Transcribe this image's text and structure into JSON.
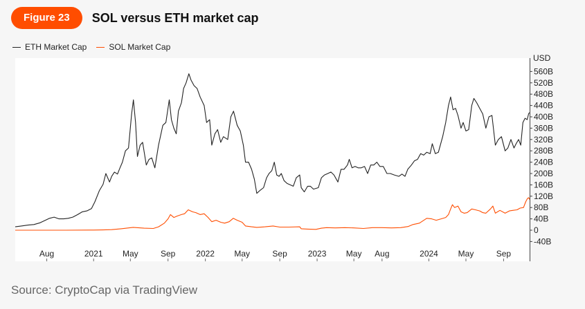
{
  "figure_label": "Figure 23",
  "title": "SOL versus ETH market cap",
  "source": "Source: CryptoCap via TradingView",
  "chart_data": {
    "type": "line",
    "y_unit": "USD",
    "ylim": [
      -40,
      590
    ],
    "y_ticks": [
      "560B",
      "520B",
      "480B",
      "440B",
      "400B",
      "360B",
      "320B",
      "280B",
      "240B",
      "200B",
      "160B",
      "120B",
      "80B",
      "40B",
      "0",
      "-40B"
    ],
    "y_tick_values": [
      560,
      520,
      480,
      440,
      400,
      360,
      320,
      280,
      240,
      200,
      160,
      120,
      80,
      40,
      0,
      -40
    ],
    "x_ticks": [
      {
        "label": "Aug",
        "date": "2020-08-01"
      },
      {
        "label": "2021",
        "date": "2021-01-01"
      },
      {
        "label": "May",
        "date": "2021-05-01"
      },
      {
        "label": "Sep",
        "date": "2021-09-01"
      },
      {
        "label": "2022",
        "date": "2022-01-01"
      },
      {
        "label": "May",
        "date": "2022-05-01"
      },
      {
        "label": "Sep",
        "date": "2022-09-01"
      },
      {
        "label": "2023",
        "date": "2023-01-01"
      },
      {
        "label": "May",
        "date": "2023-05-01"
      },
      {
        "label": "Aug",
        "date": "2023-08-01"
      },
      {
        "label": "2024",
        "date": "2024-01-01"
      },
      {
        "label": "May",
        "date": "2024-05-01"
      },
      {
        "label": "Sep",
        "date": "2024-09-01"
      }
    ],
    "x_range": [
      "2020-04-20",
      "2024-11-25"
    ],
    "grid": false,
    "legend_position": "top-left",
    "series": [
      {
        "name": "ETH Market Cap",
        "color": "#222222",
        "points": [
          [
            "2020-04-20",
            12
          ],
          [
            "2020-05-10",
            15
          ],
          [
            "2020-06-01",
            18
          ],
          [
            "2020-06-20",
            20
          ],
          [
            "2020-07-10",
            26
          ],
          [
            "2020-07-25",
            34
          ],
          [
            "2020-08-10",
            42
          ],
          [
            "2020-08-25",
            46
          ],
          [
            "2020-09-10",
            40
          ],
          [
            "2020-09-25",
            40
          ],
          [
            "2020-10-10",
            42
          ],
          [
            "2020-10-25",
            46
          ],
          [
            "2020-11-10",
            55
          ],
          [
            "2020-11-25",
            65
          ],
          [
            "2020-12-10",
            68
          ],
          [
            "2020-12-25",
            76
          ],
          [
            "2021-01-05",
            100
          ],
          [
            "2021-01-20",
            140
          ],
          [
            "2021-02-01",
            162
          ],
          [
            "2021-02-10",
            200
          ],
          [
            "2021-02-22",
            170
          ],
          [
            "2021-03-01",
            190
          ],
          [
            "2021-03-10",
            205
          ],
          [
            "2021-03-20",
            198
          ],
          [
            "2021-03-28",
            220
          ],
          [
            "2021-04-05",
            240
          ],
          [
            "2021-04-15",
            280
          ],
          [
            "2021-04-25",
            290
          ],
          [
            "2021-05-05",
            410
          ],
          [
            "2021-05-11",
            460
          ],
          [
            "2021-05-18",
            380
          ],
          [
            "2021-05-24",
            260
          ],
          [
            "2021-06-02",
            300
          ],
          [
            "2021-06-10",
            310
          ],
          [
            "2021-06-22",
            230
          ],
          [
            "2021-07-01",
            250
          ],
          [
            "2021-07-10",
            255
          ],
          [
            "2021-07-20",
            220
          ],
          [
            "2021-08-01",
            300
          ],
          [
            "2021-08-15",
            370
          ],
          [
            "2021-08-25",
            380
          ],
          [
            "2021-09-05",
            460
          ],
          [
            "2021-09-12",
            390
          ],
          [
            "2021-09-20",
            360
          ],
          [
            "2021-09-28",
            340
          ],
          [
            "2021-10-05",
            420
          ],
          [
            "2021-10-15",
            450
          ],
          [
            "2021-10-22",
            500
          ],
          [
            "2021-10-30",
            520
          ],
          [
            "2021-11-08",
            552
          ],
          [
            "2021-11-15",
            530
          ],
          [
            "2021-11-25",
            510
          ],
          [
            "2021-12-05",
            500
          ],
          [
            "2021-12-15",
            470
          ],
          [
            "2021-12-28",
            440
          ],
          [
            "2022-01-05",
            380
          ],
          [
            "2022-01-15",
            390
          ],
          [
            "2022-01-22",
            300
          ],
          [
            "2022-02-01",
            340
          ],
          [
            "2022-02-10",
            355
          ],
          [
            "2022-02-20",
            310
          ],
          [
            "2022-03-01",
            330
          ],
          [
            "2022-03-15",
            320
          ],
          [
            "2022-03-25",
            400
          ],
          [
            "2022-04-03",
            420
          ],
          [
            "2022-04-15",
            370
          ],
          [
            "2022-04-25",
            350
          ],
          [
            "2022-05-05",
            300
          ],
          [
            "2022-05-12",
            240
          ],
          [
            "2022-05-22",
            240
          ],
          [
            "2022-06-01",
            215
          ],
          [
            "2022-06-10",
            180
          ],
          [
            "2022-06-18",
            130
          ],
          [
            "2022-06-28",
            140
          ],
          [
            "2022-07-10",
            150
          ],
          [
            "2022-07-20",
            185
          ],
          [
            "2022-07-28",
            200
          ],
          [
            "2022-08-06",
            210
          ],
          [
            "2022-08-14",
            240
          ],
          [
            "2022-08-22",
            195
          ],
          [
            "2022-08-30",
            190
          ],
          [
            "2022-09-06",
            200
          ],
          [
            "2022-09-15",
            175
          ],
          [
            "2022-09-25",
            165
          ],
          [
            "2022-10-05",
            160
          ],
          [
            "2022-10-15",
            155
          ],
          [
            "2022-10-25",
            185
          ],
          [
            "2022-11-05",
            195
          ],
          [
            "2022-11-10",
            150
          ],
          [
            "2022-11-20",
            135
          ],
          [
            "2022-12-01",
            155
          ],
          [
            "2022-12-10",
            155
          ],
          [
            "2022-12-20",
            145
          ],
          [
            "2023-01-05",
            150
          ],
          [
            "2023-01-15",
            185
          ],
          [
            "2023-01-25",
            195
          ],
          [
            "2023-02-05",
            200
          ],
          [
            "2023-02-15",
            205
          ],
          [
            "2023-02-25",
            195
          ],
          [
            "2023-03-10",
            170
          ],
          [
            "2023-03-20",
            215
          ],
          [
            "2023-03-30",
            215
          ],
          [
            "2023-04-10",
            230
          ],
          [
            "2023-04-16",
            250
          ],
          [
            "2023-04-25",
            220
          ],
          [
            "2023-05-05",
            225
          ],
          [
            "2023-05-15",
            220
          ],
          [
            "2023-05-25",
            220
          ],
          [
            "2023-06-05",
            225
          ],
          [
            "2023-06-15",
            200
          ],
          [
            "2023-06-25",
            230
          ],
          [
            "2023-07-05",
            230
          ],
          [
            "2023-07-15",
            240
          ],
          [
            "2023-07-25",
            225
          ],
          [
            "2023-08-05",
            225
          ],
          [
            "2023-08-17",
            200
          ],
          [
            "2023-08-28",
            200
          ],
          [
            "2023-09-10",
            195
          ],
          [
            "2023-09-25",
            190
          ],
          [
            "2023-10-05",
            198
          ],
          [
            "2023-10-15",
            190
          ],
          [
            "2023-10-24",
            215
          ],
          [
            "2023-11-05",
            230
          ],
          [
            "2023-11-15",
            245
          ],
          [
            "2023-11-25",
            250
          ],
          [
            "2023-12-05",
            270
          ],
          [
            "2023-12-15",
            265
          ],
          [
            "2023-12-25",
            275
          ],
          [
            "2024-01-05",
            270
          ],
          [
            "2024-01-12",
            305
          ],
          [
            "2024-01-22",
            270
          ],
          [
            "2024-02-01",
            275
          ],
          [
            "2024-02-15",
            330
          ],
          [
            "2024-02-25",
            380
          ],
          [
            "2024-03-05",
            440
          ],
          [
            "2024-03-12",
            470
          ],
          [
            "2024-03-20",
            425
          ],
          [
            "2024-03-28",
            430
          ],
          [
            "2024-04-05",
            405
          ],
          [
            "2024-04-15",
            360
          ],
          [
            "2024-04-22",
            380
          ],
          [
            "2024-05-01",
            350
          ],
          [
            "2024-05-10",
            355
          ],
          [
            "2024-05-20",
            440
          ],
          [
            "2024-05-27",
            465
          ],
          [
            "2024-06-05",
            450
          ],
          [
            "2024-06-15",
            430
          ],
          [
            "2024-06-25",
            410
          ],
          [
            "2024-07-05",
            360
          ],
          [
            "2024-07-15",
            400
          ],
          [
            "2024-07-25",
            405
          ],
          [
            "2024-08-05",
            300
          ],
          [
            "2024-08-15",
            320
          ],
          [
            "2024-08-25",
            330
          ],
          [
            "2024-09-06",
            280
          ],
          [
            "2024-09-15",
            290
          ],
          [
            "2024-09-25",
            320
          ],
          [
            "2024-10-05",
            290
          ],
          [
            "2024-10-12",
            305
          ],
          [
            "2024-10-20",
            320
          ],
          [
            "2024-10-27",
            300
          ],
          [
            "2024-11-03",
            380
          ],
          [
            "2024-11-10",
            395
          ],
          [
            "2024-11-17",
            390
          ],
          [
            "2024-11-22",
            412
          ],
          [
            "2024-11-25",
            415
          ]
        ]
      },
      {
        "name": "SOL Market Cap",
        "color": "#ff4d00",
        "points": [
          [
            "2020-04-20",
            0
          ],
          [
            "2020-07-01",
            0
          ],
          [
            "2020-10-01",
            0
          ],
          [
            "2021-01-01",
            0.5
          ],
          [
            "2021-02-01",
            1
          ],
          [
            "2021-03-01",
            2
          ],
          [
            "2021-04-01",
            5
          ],
          [
            "2021-05-10",
            10
          ],
          [
            "2021-06-15",
            7
          ],
          [
            "2021-07-15",
            6
          ],
          [
            "2021-08-01",
            12
          ],
          [
            "2021-08-20",
            25
          ],
          [
            "2021-09-01",
            40
          ],
          [
            "2021-09-09",
            55
          ],
          [
            "2021-09-20",
            45
          ],
          [
            "2021-10-01",
            50
          ],
          [
            "2021-10-15",
            55
          ],
          [
            "2021-10-25",
            58
          ],
          [
            "2021-11-06",
            72
          ],
          [
            "2021-11-20",
            65
          ],
          [
            "2021-12-01",
            62
          ],
          [
            "2021-12-15",
            55
          ],
          [
            "2021-12-28",
            58
          ],
          [
            "2022-01-10",
            45
          ],
          [
            "2022-01-22",
            30
          ],
          [
            "2022-02-05",
            35
          ],
          [
            "2022-02-20",
            28
          ],
          [
            "2022-03-05",
            25
          ],
          [
            "2022-03-20",
            30
          ],
          [
            "2022-04-02",
            42
          ],
          [
            "2022-04-15",
            35
          ],
          [
            "2022-05-01",
            28
          ],
          [
            "2022-05-12",
            15
          ],
          [
            "2022-06-01",
            12
          ],
          [
            "2022-06-18",
            10
          ],
          [
            "2022-07-15",
            12
          ],
          [
            "2022-08-10",
            15
          ],
          [
            "2022-09-01",
            11
          ],
          [
            "2022-10-01",
            11
          ],
          [
            "2022-11-05",
            12
          ],
          [
            "2022-11-10",
            5
          ],
          [
            "2022-12-01",
            4
          ],
          [
            "2022-12-28",
            3
          ],
          [
            "2023-01-15",
            7
          ],
          [
            "2023-02-01",
            9
          ],
          [
            "2023-03-01",
            8
          ],
          [
            "2023-04-01",
            9
          ],
          [
            "2023-05-01",
            8
          ],
          [
            "2023-06-01",
            6
          ],
          [
            "2023-07-01",
            9
          ],
          [
            "2023-08-01",
            9
          ],
          [
            "2023-09-01",
            8
          ],
          [
            "2023-10-01",
            9
          ],
          [
            "2023-10-25",
            13
          ],
          [
            "2023-11-10",
            20
          ],
          [
            "2023-12-01",
            25
          ],
          [
            "2023-12-25",
            42
          ],
          [
            "2024-01-10",
            40
          ],
          [
            "2024-01-25",
            35
          ],
          [
            "2024-02-10",
            40
          ],
          [
            "2024-02-25",
            45
          ],
          [
            "2024-03-05",
            55
          ],
          [
            "2024-03-12",
            75
          ],
          [
            "2024-03-18",
            90
          ],
          [
            "2024-03-25",
            80
          ],
          [
            "2024-04-05",
            85
          ],
          [
            "2024-04-15",
            65
          ],
          [
            "2024-04-25",
            60
          ],
          [
            "2024-05-05",
            62
          ],
          [
            "2024-05-20",
            75
          ],
          [
            "2024-06-01",
            72
          ],
          [
            "2024-06-15",
            68
          ],
          [
            "2024-06-25",
            62
          ],
          [
            "2024-07-05",
            60
          ],
          [
            "2024-07-20",
            75
          ],
          [
            "2024-07-28",
            85
          ],
          [
            "2024-08-05",
            60
          ],
          [
            "2024-08-20",
            70
          ],
          [
            "2024-09-06",
            60
          ],
          [
            "2024-09-20",
            68
          ],
          [
            "2024-10-01",
            70
          ],
          [
            "2024-10-15",
            72
          ],
          [
            "2024-10-25",
            78
          ],
          [
            "2024-11-05",
            80
          ],
          [
            "2024-11-12",
            100
          ],
          [
            "2024-11-18",
            112
          ],
          [
            "2024-11-22",
            115
          ],
          [
            "2024-11-25",
            108
          ]
        ]
      }
    ]
  }
}
